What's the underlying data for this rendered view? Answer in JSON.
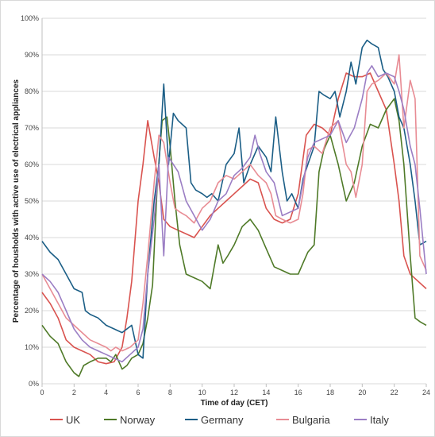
{
  "chart_data": {
    "type": "line",
    "xlabel": "Time of day (CET)",
    "ylabel": "Percentage of housholds with active use of electrical appliances",
    "xlim": [
      0,
      24
    ],
    "ylim": [
      0,
      100
    ],
    "x_ticks": [
      "0",
      "2",
      "4",
      "6",
      "8",
      "10",
      "12",
      "14",
      "16",
      "18",
      "20",
      "22",
      "24"
    ],
    "y_ticks": [
      "0%",
      "10%",
      "20%",
      "30%",
      "40%",
      "50%",
      "60%",
      "70%",
      "80%",
      "90%",
      "100%"
    ],
    "grid": "horizontal",
    "legend_position": "bottom",
    "series": [
      {
        "name": "UK",
        "color": "#d9534f",
        "points": [
          [
            0,
            25
          ],
          [
            0.5,
            22
          ],
          [
            1,
            18
          ],
          [
            1.5,
            12
          ],
          [
            2,
            10
          ],
          [
            2.5,
            9
          ],
          [
            3,
            8
          ],
          [
            3.5,
            6
          ],
          [
            4,
            5.5
          ],
          [
            4.5,
            6
          ],
          [
            5,
            10
          ],
          [
            5.3,
            18
          ],
          [
            5.6,
            28
          ],
          [
            6,
            50
          ],
          [
            6.3,
            60
          ],
          [
            6.6,
            72
          ],
          [
            7,
            62
          ],
          [
            7.3,
            55
          ],
          [
            7.6,
            45
          ],
          [
            8,
            43
          ],
          [
            8.5,
            42
          ],
          [
            9,
            41
          ],
          [
            9.5,
            40
          ],
          [
            10,
            43
          ],
          [
            10.5,
            46
          ],
          [
            11,
            48
          ],
          [
            11.5,
            50
          ],
          [
            12,
            52
          ],
          [
            12.5,
            54
          ],
          [
            13,
            56
          ],
          [
            13.5,
            55
          ],
          [
            14,
            48
          ],
          [
            14.5,
            45
          ],
          [
            15,
            44
          ],
          [
            15.5,
            45
          ],
          [
            16,
            52
          ],
          [
            16.5,
            68
          ],
          [
            17,
            71
          ],
          [
            17.5,
            70
          ],
          [
            18,
            68
          ],
          [
            18.5,
            78
          ],
          [
            19,
            85
          ],
          [
            19.5,
            84
          ],
          [
            20,
            84
          ],
          [
            20.5,
            85
          ],
          [
            21,
            80
          ],
          [
            21.5,
            75
          ],
          [
            22,
            60
          ],
          [
            22.3,
            50
          ],
          [
            22.6,
            35
          ],
          [
            23,
            30
          ],
          [
            23.5,
            28
          ],
          [
            24,
            26
          ]
        ]
      },
      {
        "name": "Norway",
        "color": "#4f7a28",
        "points": [
          [
            0,
            16
          ],
          [
            0.5,
            13
          ],
          [
            1,
            11
          ],
          [
            1.5,
            6
          ],
          [
            2,
            3
          ],
          [
            2.3,
            2
          ],
          [
            2.6,
            5
          ],
          [
            3,
            6
          ],
          [
            3.5,
            7
          ],
          [
            4,
            7
          ],
          [
            4.3,
            6
          ],
          [
            4.6,
            8
          ],
          [
            5,
            4
          ],
          [
            5.3,
            5
          ],
          [
            5.6,
            7
          ],
          [
            6,
            8
          ],
          [
            6.3,
            11
          ],
          [
            6.6,
            18
          ],
          [
            6.9,
            27
          ],
          [
            7.2,
            55
          ],
          [
            7.5,
            72
          ],
          [
            7.8,
            73
          ],
          [
            8,
            65
          ],
          [
            8.3,
            50
          ],
          [
            8.6,
            38
          ],
          [
            9,
            30
          ],
          [
            9.5,
            29
          ],
          [
            10,
            28
          ],
          [
            10.5,
            26
          ],
          [
            11,
            38
          ],
          [
            11.3,
            33
          ],
          [
            11.6,
            35
          ],
          [
            12,
            38
          ],
          [
            12.5,
            43
          ],
          [
            13,
            45
          ],
          [
            13.5,
            42
          ],
          [
            14,
            37
          ],
          [
            14.5,
            32
          ],
          [
            15,
            31
          ],
          [
            15.5,
            30
          ],
          [
            16,
            30
          ],
          [
            16.3,
            33
          ],
          [
            16.6,
            36
          ],
          [
            17,
            38
          ],
          [
            17.3,
            58
          ],
          [
            17.6,
            64
          ],
          [
            18,
            68
          ],
          [
            18.5,
            60
          ],
          [
            19,
            50
          ],
          [
            19.5,
            55
          ],
          [
            20,
            65
          ],
          [
            20.5,
            71
          ],
          [
            21,
            70
          ],
          [
            21.5,
            75
          ],
          [
            22,
            78
          ],
          [
            22.3,
            72
          ],
          [
            22.6,
            60
          ],
          [
            23,
            35
          ],
          [
            23.3,
            18
          ],
          [
            23.6,
            17
          ],
          [
            24,
            16
          ]
        ]
      },
      {
        "name": "Germany",
        "color": "#1b5e86",
        "points": [
          [
            0,
            39
          ],
          [
            0.5,
            36
          ],
          [
            1,
            34
          ],
          [
            1.5,
            30
          ],
          [
            2,
            26
          ],
          [
            2.5,
            25
          ],
          [
            2.7,
            20
          ],
          [
            3,
            19
          ],
          [
            3.5,
            18
          ],
          [
            4,
            16
          ],
          [
            4.5,
            15
          ],
          [
            5,
            14
          ],
          [
            5.3,
            15
          ],
          [
            5.6,
            16
          ],
          [
            6,
            8
          ],
          [
            6.3,
            7
          ],
          [
            6.6,
            30
          ],
          [
            7,
            50
          ],
          [
            7.3,
            60
          ],
          [
            7.6,
            82
          ],
          [
            7.9,
            60
          ],
          [
            8.2,
            74
          ],
          [
            8.5,
            72
          ],
          [
            9,
            70
          ],
          [
            9.3,
            55
          ],
          [
            9.6,
            53
          ],
          [
            10,
            52
          ],
          [
            10.3,
            51
          ],
          [
            10.6,
            52
          ],
          [
            11,
            50
          ],
          [
            11.5,
            60
          ],
          [
            12,
            63
          ],
          [
            12.3,
            70
          ],
          [
            12.6,
            55
          ],
          [
            13,
            60
          ],
          [
            13.5,
            65
          ],
          [
            14,
            62
          ],
          [
            14.3,
            58
          ],
          [
            14.6,
            73
          ],
          [
            15,
            58
          ],
          [
            15.3,
            50
          ],
          [
            15.6,
            52
          ],
          [
            16,
            48
          ],
          [
            16.3,
            56
          ],
          [
            16.6,
            60
          ],
          [
            17,
            65
          ],
          [
            17.3,
            80
          ],
          [
            17.6,
            79
          ],
          [
            18,
            78
          ],
          [
            18.3,
            80
          ],
          [
            18.6,
            73
          ],
          [
            19,
            80
          ],
          [
            19.3,
            88
          ],
          [
            19.6,
            82
          ],
          [
            20,
            92
          ],
          [
            20.3,
            94
          ],
          [
            20.6,
            93
          ],
          [
            21,
            92
          ],
          [
            21.3,
            86
          ],
          [
            21.6,
            84
          ],
          [
            22,
            80
          ],
          [
            22.3,
            73
          ],
          [
            22.6,
            70
          ],
          [
            23,
            60
          ],
          [
            23.3,
            50
          ],
          [
            23.6,
            38
          ],
          [
            24,
            39
          ]
        ]
      },
      {
        "name": "Bulgaria",
        "color": "#e88c94",
        "points": [
          [
            0,
            30
          ],
          [
            0.5,
            26
          ],
          [
            1,
            22
          ],
          [
            1.5,
            18
          ],
          [
            2,
            16
          ],
          [
            2.5,
            14
          ],
          [
            3,
            12
          ],
          [
            3.5,
            11
          ],
          [
            4,
            10
          ],
          [
            4.3,
            9
          ],
          [
            4.6,
            10
          ],
          [
            5,
            9
          ],
          [
            5.5,
            10
          ],
          [
            6,
            12
          ],
          [
            6.3,
            22
          ],
          [
            6.6,
            35
          ],
          [
            7,
            55
          ],
          [
            7.3,
            68
          ],
          [
            7.6,
            66
          ],
          [
            8,
            55
          ],
          [
            8.3,
            48
          ],
          [
            8.6,
            47
          ],
          [
            9,
            46
          ],
          [
            9.5,
            44
          ],
          [
            10,
            48
          ],
          [
            10.5,
            50
          ],
          [
            11,
            55
          ],
          [
            11.5,
            57
          ],
          [
            12,
            56
          ],
          [
            12.5,
            58
          ],
          [
            13,
            60
          ],
          [
            13.5,
            57
          ],
          [
            14,
            55
          ],
          [
            14.3,
            52
          ],
          [
            14.6,
            46
          ],
          [
            15,
            45
          ],
          [
            15.5,
            44
          ],
          [
            16,
            45
          ],
          [
            16.3,
            52
          ],
          [
            16.6,
            64
          ],
          [
            17,
            65
          ],
          [
            17.5,
            63
          ],
          [
            18,
            70
          ],
          [
            18.5,
            72
          ],
          [
            19,
            60
          ],
          [
            19.3,
            58
          ],
          [
            19.6,
            51
          ],
          [
            20,
            60
          ],
          [
            20.3,
            80
          ],
          [
            20.6,
            82
          ],
          [
            21,
            83
          ],
          [
            21.5,
            85
          ],
          [
            22,
            82
          ],
          [
            22.3,
            90
          ],
          [
            22.6,
            70
          ],
          [
            23,
            83
          ],
          [
            23.3,
            78
          ],
          [
            23.6,
            35
          ],
          [
            24,
            31
          ]
        ]
      },
      {
        "name": "Italy",
        "color": "#9b7ec4",
        "points": [
          [
            0,
            30
          ],
          [
            0.5,
            28
          ],
          [
            1,
            25
          ],
          [
            1.5,
            20
          ],
          [
            2,
            15
          ],
          [
            2.5,
            12
          ],
          [
            3,
            10
          ],
          [
            3.5,
            9
          ],
          [
            4,
            8
          ],
          [
            4.5,
            7
          ],
          [
            5,
            6
          ],
          [
            5.5,
            8
          ],
          [
            6,
            10
          ],
          [
            6.3,
            15
          ],
          [
            6.6,
            30
          ],
          [
            7,
            45
          ],
          [
            7.3,
            60
          ],
          [
            7.6,
            35
          ],
          [
            7.9,
            62
          ],
          [
            8.2,
            60
          ],
          [
            8.5,
            58
          ],
          [
            9,
            50
          ],
          [
            9.5,
            46
          ],
          [
            10,
            42
          ],
          [
            10.5,
            45
          ],
          [
            11,
            50
          ],
          [
            11.5,
            52
          ],
          [
            12,
            57
          ],
          [
            12.5,
            59
          ],
          [
            13,
            62
          ],
          [
            13.3,
            68
          ],
          [
            13.6,
            63
          ],
          [
            14,
            58
          ],
          [
            14.5,
            55
          ],
          [
            15,
            46
          ],
          [
            15.5,
            47
          ],
          [
            16,
            48
          ],
          [
            16.3,
            55
          ],
          [
            16.6,
            62
          ],
          [
            17,
            66
          ],
          [
            17.5,
            67
          ],
          [
            18,
            68
          ],
          [
            18.5,
            72
          ],
          [
            19,
            66
          ],
          [
            19.5,
            70
          ],
          [
            20,
            78
          ],
          [
            20.3,
            85
          ],
          [
            20.6,
            87
          ],
          [
            21,
            84
          ],
          [
            21.5,
            85
          ],
          [
            22,
            84
          ],
          [
            22.3,
            80
          ],
          [
            22.6,
            75
          ],
          [
            23,
            65
          ],
          [
            23.3,
            60
          ],
          [
            23.6,
            48
          ],
          [
            24,
            30
          ]
        ]
      }
    ]
  }
}
